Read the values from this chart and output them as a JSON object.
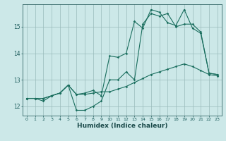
{
  "xlabel": "Humidex (Indice chaleur)",
  "bg_color": "#cce8e8",
  "grid_color": "#99bbbb",
  "line_color": "#1a6e5e",
  "xlim": [
    -0.5,
    23.5
  ],
  "ylim": [
    11.65,
    15.85
  ],
  "yticks": [
    12,
    13,
    14,
    15
  ],
  "xticks": [
    0,
    1,
    2,
    3,
    4,
    5,
    6,
    7,
    8,
    9,
    10,
    11,
    12,
    13,
    14,
    15,
    16,
    17,
    18,
    19,
    20,
    21,
    22,
    23
  ],
  "series1_x": [
    0,
    1,
    2,
    3,
    4,
    5,
    6,
    7,
    8,
    9,
    10,
    11,
    12,
    13,
    14,
    15,
    16,
    17,
    18,
    19,
    20,
    21,
    22,
    23
  ],
  "series1_y": [
    12.3,
    12.3,
    12.2,
    12.4,
    12.5,
    12.8,
    11.85,
    11.85,
    12.0,
    12.2,
    13.0,
    13.0,
    13.3,
    13.0,
    15.1,
    15.5,
    15.4,
    15.5,
    15.0,
    15.1,
    15.1,
    14.8,
    13.25,
    13.2
  ],
  "series2_x": [
    0,
    1,
    2,
    3,
    4,
    5,
    6,
    7,
    8,
    9,
    10,
    11,
    12,
    13,
    14,
    15,
    16,
    17,
    18,
    19,
    20,
    21,
    22,
    23
  ],
  "series2_y": [
    12.3,
    12.3,
    12.3,
    12.4,
    12.5,
    12.8,
    12.45,
    12.45,
    12.5,
    12.55,
    12.55,
    12.65,
    12.75,
    12.9,
    13.05,
    13.2,
    13.3,
    13.4,
    13.5,
    13.6,
    13.5,
    13.35,
    13.2,
    13.15
  ],
  "series3_x": [
    0,
    1,
    2,
    3,
    4,
    5,
    6,
    7,
    8,
    9,
    10,
    11,
    12,
    13,
    14,
    15,
    16,
    17,
    18,
    19,
    20,
    21,
    22,
    23
  ],
  "series3_y": [
    12.3,
    12.3,
    12.3,
    12.4,
    12.5,
    12.8,
    12.45,
    12.5,
    12.6,
    12.4,
    13.9,
    13.85,
    14.0,
    15.2,
    14.95,
    15.65,
    15.55,
    15.15,
    15.05,
    15.65,
    14.95,
    14.75,
    13.25,
    13.2
  ]
}
